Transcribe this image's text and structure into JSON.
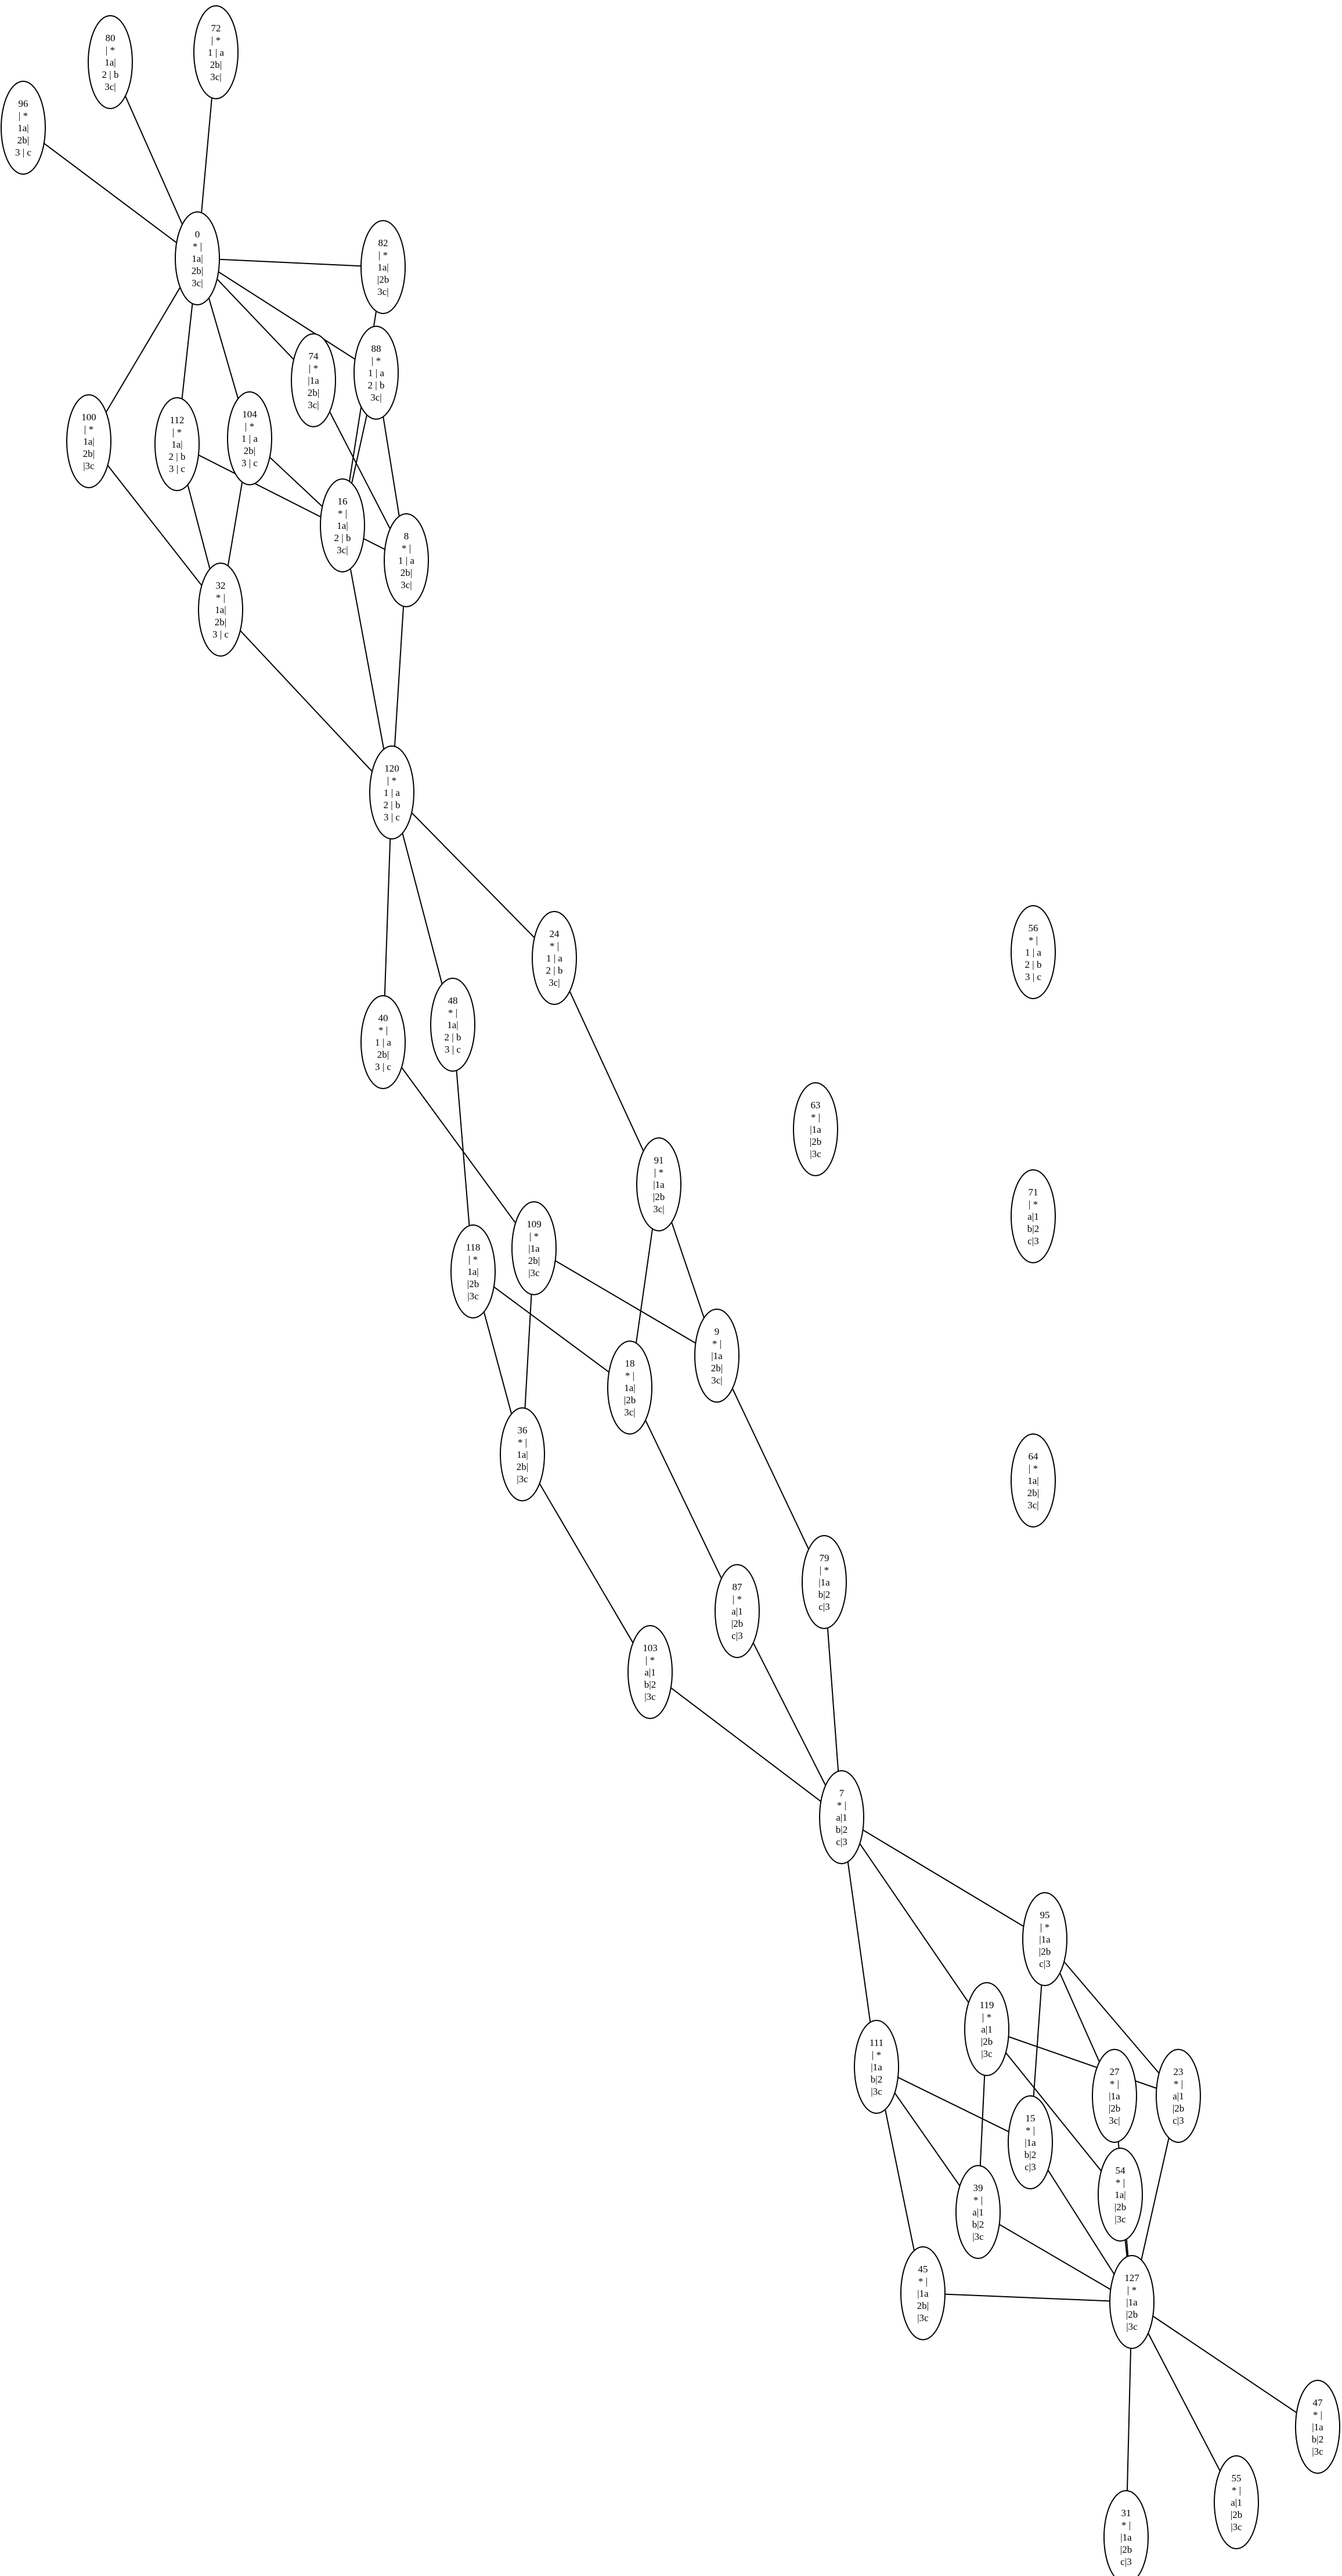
{
  "graph": {
    "nodes": [
      {
        "id": "0",
        "lines": [
          "0",
          "* |",
          "1a|",
          "2b|",
          "3c|"
        ]
      },
      {
        "id": "72",
        "lines": [
          "72",
          "| *",
          "1 | a",
          "2b|",
          "3c|"
        ]
      },
      {
        "id": "80",
        "lines": [
          "80",
          "| *",
          "1a|",
          "2 | b",
          "3c|"
        ]
      },
      {
        "id": "96",
        "lines": [
          "96",
          "| *",
          "1a|",
          "2b|",
          "3 | c"
        ]
      },
      {
        "id": "82",
        "lines": [
          "82",
          "| *",
          "1a|",
          "|2b",
          "3c|"
        ]
      },
      {
        "id": "88",
        "lines": [
          "88",
          "| *",
          "1 | a",
          "2 | b",
          "3c|"
        ]
      },
      {
        "id": "74",
        "lines": [
          "74",
          "| *",
          "|1a",
          "2b|",
          "3c|"
        ]
      },
      {
        "id": "104",
        "lines": [
          "104",
          "| *",
          "1 | a",
          "2b|",
          "3 | c"
        ]
      },
      {
        "id": "112",
        "lines": [
          "112",
          "| *",
          "1a|",
          "2 | b",
          "3 | c"
        ]
      },
      {
        "id": "100",
        "lines": [
          "100",
          "| *",
          "1a|",
          "2b|",
          "|3c"
        ]
      },
      {
        "id": "16",
        "lines": [
          "16",
          "* |",
          "1a|",
          "2 | b",
          "3c|"
        ]
      },
      {
        "id": "8",
        "lines": [
          "8",
          "* |",
          "1 | a",
          "2b|",
          "3c|"
        ]
      },
      {
        "id": "32",
        "lines": [
          "32",
          "* |",
          "1a|",
          "2b|",
          "3 | c"
        ]
      },
      {
        "id": "120",
        "lines": [
          "120",
          "| *",
          "1 | a",
          "2 | b",
          "3 | c"
        ]
      },
      {
        "id": "24",
        "lines": [
          "24",
          "* |",
          "1 | a",
          "2 | b",
          "3c|"
        ]
      },
      {
        "id": "40",
        "lines": [
          "40",
          "* |",
          "1 | a",
          "2b|",
          "3 | c"
        ]
      },
      {
        "id": "48",
        "lines": [
          "48",
          "* |",
          "1a|",
          "2 | b",
          "3 | c"
        ]
      },
      {
        "id": "56",
        "lines": [
          "56",
          "* |",
          "1 | a",
          "2 | b",
          "3 | c"
        ]
      },
      {
        "id": "63",
        "lines": [
          "63",
          "* |",
          "|1a",
          "|2b",
          "|3c"
        ]
      },
      {
        "id": "91",
        "lines": [
          "91",
          "| *",
          "|1a",
          "|2b",
          "3c|"
        ]
      },
      {
        "id": "71",
        "lines": [
          "71",
          "| *",
          "a|1",
          "b|2",
          "c|3"
        ]
      },
      {
        "id": "109",
        "lines": [
          "109",
          "| *",
          "|1a",
          "2b|",
          "|3c"
        ]
      },
      {
        "id": "118",
        "lines": [
          "118",
          "| *",
          "1a|",
          "|2b",
          "|3c"
        ]
      },
      {
        "id": "9",
        "lines": [
          "9",
          "* |",
          "|1a",
          "2b|",
          "3c|"
        ]
      },
      {
        "id": "18",
        "lines": [
          "18",
          "* |",
          "1a|",
          "|2b",
          "3c|"
        ]
      },
      {
        "id": "36",
        "lines": [
          "36",
          "* |",
          "1a|",
          "2b|",
          "|3c"
        ]
      },
      {
        "id": "64",
        "lines": [
          "64",
          "| *",
          "1a|",
          "2b|",
          "3c|"
        ]
      },
      {
        "id": "79",
        "lines": [
          "79",
          "| *",
          "|1a",
          "b|2",
          "c|3"
        ]
      },
      {
        "id": "87",
        "lines": [
          "87",
          "| *",
          "a|1",
          "|2b",
          "c|3"
        ]
      },
      {
        "id": "103",
        "lines": [
          "103",
          "| *",
          "a|1",
          "b|2",
          "|3c"
        ]
      },
      {
        "id": "7",
        "lines": [
          "7",
          "* |",
          "a|1",
          "b|2",
          "c|3"
        ]
      },
      {
        "id": "95",
        "lines": [
          "95",
          "| *",
          "|1a",
          "|2b",
          "c|3"
        ]
      },
      {
        "id": "119",
        "lines": [
          "119",
          "| *",
          "a|1",
          "|2b",
          "|3c"
        ]
      },
      {
        "id": "111",
        "lines": [
          "111",
          "| *",
          "|1a",
          "b|2",
          "|3c"
        ]
      },
      {
        "id": "27",
        "lines": [
          "27",
          "* |",
          "|1a",
          "|2b",
          "3c|"
        ]
      },
      {
        "id": "23",
        "lines": [
          "23",
          "* |",
          "a|1",
          "|2b",
          "c|3"
        ]
      },
      {
        "id": "15",
        "lines": [
          "15",
          "* |",
          "|1a",
          "b|2",
          "c|3"
        ]
      },
      {
        "id": "54",
        "lines": [
          "54",
          "* |",
          "1a|",
          "|2b",
          "|3c"
        ]
      },
      {
        "id": "39",
        "lines": [
          "39",
          "* |",
          "a|1",
          "b|2",
          "|3c"
        ]
      },
      {
        "id": "45",
        "lines": [
          "45",
          "* |",
          "|1a",
          "2b|",
          "|3c"
        ]
      },
      {
        "id": "127",
        "lines": [
          "127",
          "| *",
          "|1a",
          "|2b",
          "|3c"
        ]
      },
      {
        "id": "47",
        "lines": [
          "47",
          "* |",
          "|1a",
          "b|2",
          "|3c"
        ]
      },
      {
        "id": "55",
        "lines": [
          "55",
          "* |",
          "a|1",
          "|2b",
          "|3c"
        ]
      },
      {
        "id": "31",
        "lines": [
          "31",
          "* |",
          "|1a",
          "|2b",
          "c|3"
        ]
      }
    ],
    "edges": [
      [
        "0",
        "72"
      ],
      [
        "0",
        "80"
      ],
      [
        "0",
        "96"
      ],
      [
        "0",
        "82"
      ],
      [
        "0",
        "88"
      ],
      [
        "0",
        "74"
      ],
      [
        "0",
        "104"
      ],
      [
        "0",
        "112"
      ],
      [
        "0",
        "100"
      ],
      [
        "82",
        "16"
      ],
      [
        "88",
        "16"
      ],
      [
        "88",
        "8"
      ],
      [
        "74",
        "8"
      ],
      [
        "104",
        "16"
      ],
      [
        "104",
        "32"
      ],
      [
        "112",
        "8"
      ],
      [
        "112",
        "32"
      ],
      [
        "100",
        "32"
      ],
      [
        "16",
        "120"
      ],
      [
        "8",
        "120"
      ],
      [
        "32",
        "120"
      ],
      [
        "120",
        "24"
      ],
      [
        "120",
        "40"
      ],
      [
        "120",
        "48"
      ],
      [
        "24",
        "91"
      ],
      [
        "40",
        "109"
      ],
      [
        "48",
        "118"
      ],
      [
        "91",
        "18"
      ],
      [
        "91",
        "9"
      ],
      [
        "109",
        "9"
      ],
      [
        "109",
        "36"
      ],
      [
        "118",
        "18"
      ],
      [
        "118",
        "36"
      ],
      [
        "9",
        "79"
      ],
      [
        "18",
        "87"
      ],
      [
        "36",
        "103"
      ],
      [
        "79",
        "7"
      ],
      [
        "87",
        "7"
      ],
      [
        "103",
        "7"
      ],
      [
        "7",
        "95"
      ],
      [
        "7",
        "119"
      ],
      [
        "7",
        "111"
      ],
      [
        "95",
        "27"
      ],
      [
        "95",
        "23"
      ],
      [
        "95",
        "15"
      ],
      [
        "119",
        "23"
      ],
      [
        "119",
        "54"
      ],
      [
        "119",
        "39"
      ],
      [
        "111",
        "15"
      ],
      [
        "111",
        "39"
      ],
      [
        "111",
        "45"
      ],
      [
        "27",
        "127"
      ],
      [
        "23",
        "127"
      ],
      [
        "15",
        "127"
      ],
      [
        "54",
        "127"
      ],
      [
        "39",
        "127"
      ],
      [
        "45",
        "127"
      ],
      [
        "127",
        "47"
      ],
      [
        "127",
        "55"
      ],
      [
        "127",
        "31"
      ]
    ]
  }
}
